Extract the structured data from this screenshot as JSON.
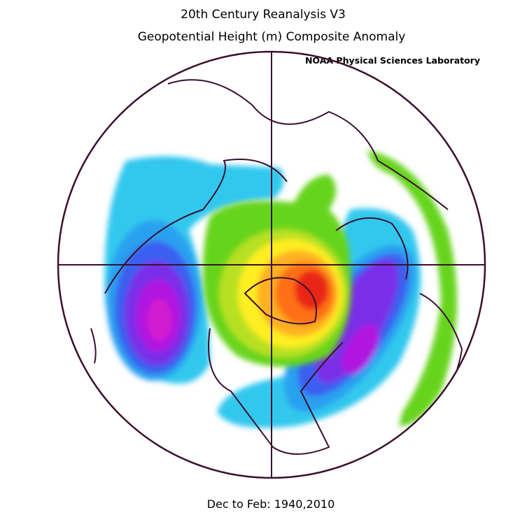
{
  "header": {
    "title": "20th Century Reanalysis V3",
    "subtitle": "Geopotential Height (m) Composite Anomaly",
    "credit": "NOAA Physical Sciences Laboratory"
  },
  "footer": {
    "period": "Dec to Feb: 1940,2010"
  }
}
